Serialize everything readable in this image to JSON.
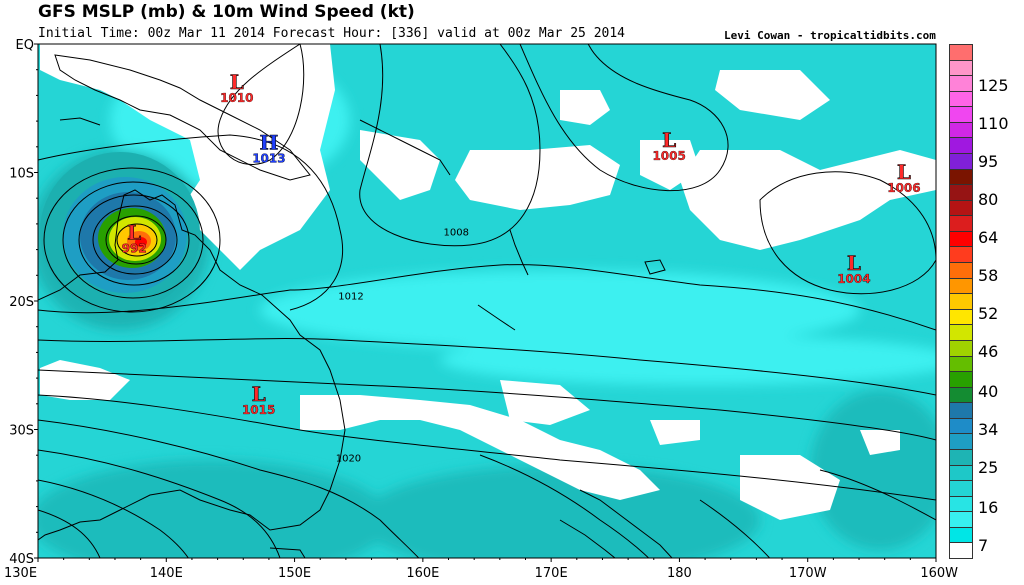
{
  "header": {
    "title": "GFS MSLP (mb) & 10m Wind Speed (kt)",
    "subtitle": "Initial Time: 00z Mar 11 2014 Forecast Hour: [336] valid at 00z Mar 25 2014",
    "credit": "Levi Cowan - tropicaltidbits.com"
  },
  "map": {
    "lat_labels": [
      "EQ",
      "10S",
      "20S",
      "30S",
      "40S"
    ],
    "lon_labels": [
      "130E",
      "140E",
      "150E",
      "160E",
      "170E",
      "180",
      "170W",
      "160W"
    ],
    "pressure_centers": [
      {
        "type": "L",
        "value": "1010",
        "lon": 145.5,
        "lat": -3.5,
        "color": "#ff2a2a"
      },
      {
        "type": "H",
        "value": "1013",
        "lon": 148.0,
        "lat": -8.2,
        "color": "#2040ff"
      },
      {
        "type": "L",
        "value": "992",
        "lon": 137.5,
        "lat": -15.2,
        "color": "#ff2a2a"
      },
      {
        "type": "L",
        "value": "1005",
        "lon": 179.2,
        "lat": -8.0,
        "color": "#ff2a2a"
      },
      {
        "type": "L",
        "value": "1006",
        "lon": 197.5,
        "lat": -10.5,
        "color": "#ff2a2a"
      },
      {
        "type": "L",
        "value": "1004",
        "lon": 193.6,
        "lat": -17.6,
        "color": "#ff2a2a"
      },
      {
        "type": "L",
        "value": "1015",
        "lon": 147.2,
        "lat": -27.8,
        "color": "#ff2a2a"
      }
    ],
    "isobar_labels": [
      {
        "value": "1008",
        "lon": 162.6,
        "lat": -14.9
      },
      {
        "value": "1012",
        "lon": 154.4,
        "lat": -19.9
      },
      {
        "value": "1020",
        "lon": 154.2,
        "lat": -32.5
      }
    ]
  },
  "legend": {
    "labels": [
      "125",
      "110",
      "95",
      "80",
      "64",
      "58",
      "52",
      "46",
      "40",
      "34",
      "25",
      "16",
      "7"
    ],
    "colors": [
      "#ff6e6e",
      "#ff96c8",
      "#ff82d8",
      "#ff64e6",
      "#f046f0",
      "#d028e6",
      "#a018e0",
      "#8020d8",
      "#7a1400",
      "#961414",
      "#b41414",
      "#dc1e1e",
      "#ff0000",
      "#ff3c1e",
      "#ff6e0a",
      "#ff9600",
      "#ffc800",
      "#ffe600",
      "#d2e600",
      "#a0d200",
      "#64be00",
      "#28a000",
      "#148c32",
      "#1e78aa",
      "#1e8cc8",
      "#1e9ec4",
      "#1eb4b4",
      "#1ec8c8",
      "#24d4d4",
      "#28e4e4",
      "#38f0f0",
      "#00e6e6",
      "#ffffff"
    ]
  }
}
